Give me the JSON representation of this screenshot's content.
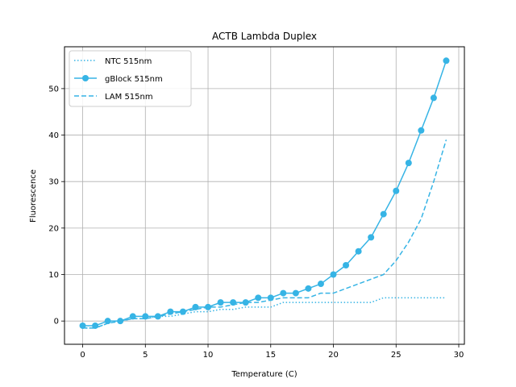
{
  "chart_data": {
    "type": "line",
    "title": "ACTB Lambda Duplex",
    "xlabel": "Temperature (C)",
    "ylabel": "Fluorescence",
    "xlim": [
      -1.45,
      30.45
    ],
    "ylim": [
      -5,
      59
    ],
    "xticks": [
      0,
      5,
      10,
      15,
      20,
      25,
      30
    ],
    "yticks": [
      0,
      10,
      20,
      30,
      40,
      50
    ],
    "grid": true,
    "legend_position": "top-left",
    "series": [
      {
        "name": "NTC 515nm",
        "style": "dotted",
        "marker": "none",
        "color": "#36b4e5",
        "x": [
          0,
          1,
          2,
          3,
          4,
          5,
          6,
          7,
          8,
          9,
          10,
          11,
          12,
          13,
          14,
          15,
          16,
          17,
          18,
          19,
          20,
          21,
          22,
          23,
          24,
          25,
          26,
          27,
          28,
          29
        ],
        "y": [
          -1.5,
          -1.5,
          -0.5,
          0,
          0.5,
          0.5,
          1,
          1,
          1.5,
          2,
          2,
          2.5,
          2.5,
          3,
          3,
          3,
          4,
          4,
          4,
          4,
          4,
          4,
          4,
          4,
          5,
          5,
          5,
          5,
          5,
          5
        ]
      },
      {
        "name": "gBlock 515nm",
        "style": "solid",
        "marker": "circle",
        "color": "#36b4e5",
        "x": [
          0,
          1,
          2,
          3,
          4,
          5,
          6,
          7,
          8,
          9,
          10,
          11,
          12,
          13,
          14,
          15,
          16,
          17,
          18,
          19,
          20,
          21,
          22,
          23,
          24,
          25,
          26,
          27,
          28,
          29
        ],
        "y": [
          -1,
          -1,
          0,
          0,
          1,
          1,
          1,
          2,
          2,
          3,
          3,
          4,
          4,
          4,
          5,
          5,
          6,
          6,
          7,
          8,
          10,
          12,
          15,
          18,
          23,
          28,
          34,
          41,
          48,
          56
        ]
      },
      {
        "name": "LAM 515nm",
        "style": "dashed",
        "marker": "none",
        "color": "#36b4e5",
        "x": [
          0,
          1,
          2,
          3,
          4,
          5,
          6,
          7,
          8,
          9,
          10,
          11,
          12,
          13,
          14,
          15,
          16,
          17,
          18,
          19,
          20,
          21,
          22,
          23,
          24,
          25,
          26,
          27,
          28,
          29
        ],
        "y": [
          -1.5,
          -1.5,
          -0.5,
          0,
          0.5,
          0.5,
          1,
          1.5,
          2,
          2.5,
          3,
          3,
          3.5,
          4,
          4,
          4.5,
          5,
          5,
          5,
          6,
          6,
          7,
          8,
          9,
          10,
          13,
          17,
          22,
          30,
          39
        ]
      }
    ]
  }
}
